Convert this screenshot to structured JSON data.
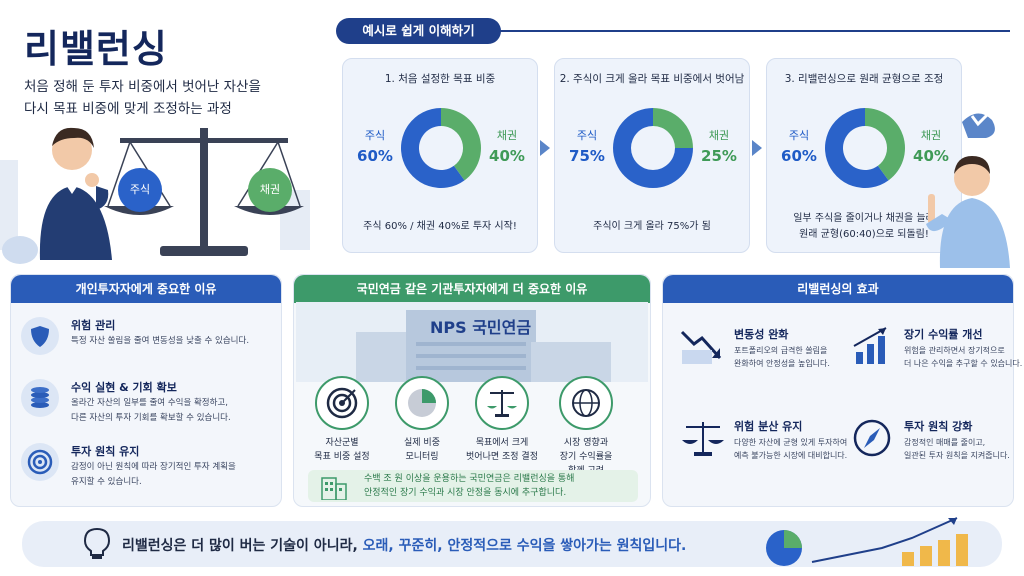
{
  "title": "리밸런싱",
  "subtitle_line1": "처음 정해 둔 투자 비중에서 벗어난 자산을",
  "subtitle_line2": "다시 목표 비중에 맞게 조정하는 과정",
  "scale": {
    "left_label": "주식",
    "right_label": "채권"
  },
  "example": {
    "header": "예시로 쉽게 이해하기",
    "steps": [
      {
        "title": "1. 처음 설정한 목표 비중",
        "left_name": "주식",
        "left_value": "60%",
        "right_name": "채권",
        "right_value": "40%",
        "stock_pct": 60,
        "caption": "주식 60% / 채권 40%로 투자 시작!",
        "caption2": ""
      },
      {
        "title": "2. 주식이 크게 올라 목표 비중에서 벗어남",
        "left_name": "주식",
        "left_value": "75%",
        "right_name": "채권",
        "right_value": "25%",
        "stock_pct": 75,
        "caption": "주식이 크게 올라 75%가 됨",
        "caption2": ""
      },
      {
        "title": "3. 리밸런싱으로 원래 균형으로 조정",
        "left_name": "주식",
        "left_value": "60%",
        "right_name": "채권",
        "right_value": "40%",
        "stock_pct": 60,
        "caption": "일부 주식을 줄이거나 채권을 늘려",
        "caption2": "원래 균형(60:40)으로 되돌림!"
      }
    ]
  },
  "individual": {
    "header": "개인투자자에게 중요한 이유",
    "items": [
      {
        "title": "위험 관리",
        "desc1": "특정 자산 쏠림을 줄여 변동성을 낮출 수 있습니다.",
        "desc2": "",
        "icon": "shield-icon"
      },
      {
        "title": "수익 실현 & 기회 확보",
        "desc1": "올라간 자산의 일부를 줄여 수익을 확정하고,",
        "desc2": "다른 자산의 투자 기회를 확보할 수 있습니다.",
        "icon": "coins-icon"
      },
      {
        "title": "투자 원칙 유지",
        "desc1": "감정이 아닌 원칙에 따라 장기적인 투자 계획을",
        "desc2": "유지할 수 있습니다.",
        "icon": "target-icon"
      }
    ]
  },
  "institutional": {
    "header": "국민연금 같은 기관투자자에게 더 중요한 이유",
    "building_sign": "NPS 국민연금",
    "steps": [
      {
        "line1": "자산군별",
        "line2": "목표 비중 설정",
        "icon": "target-icon"
      },
      {
        "line1": "실제 비중",
        "line2": "모니터링",
        "icon": "pie-chart-icon"
      },
      {
        "line1": "목표에서 크게",
        "line2": "벗어나면 조정 결정",
        "icon": "scale-icon"
      },
      {
        "line1": "시장 영향과",
        "line2": "장기 수익률을",
        "line3": "함께 고려",
        "icon": "globe-icon"
      }
    ],
    "note1": "수백 조 원 이상을 운용하는 국민연금은 리밸런싱을 통해",
    "note2": "안정적인 장기 수익과 시장 안정을 동시에 추구합니다."
  },
  "effects": {
    "header": "리밸런싱의 효과",
    "items": [
      {
        "title": "변동성 완화",
        "desc1": "포트폴리오의 급격한 쏠림을",
        "desc2": "완화하여 안정성을 높입니다.",
        "icon": "trend-down-icon"
      },
      {
        "title": "장기 수익률 개선",
        "desc1": "위험을 관리하면서 장기적으로",
        "desc2": "더 나은 수익을 추구할 수 있습니다.",
        "icon": "bar-chart-up-icon"
      },
      {
        "title": "위험 분산 유지",
        "desc1": "다양한 자산에 균형 있게 투자하여",
        "desc2": "예측 불가능한 시장에 대비합니다.",
        "icon": "scale-icon"
      },
      {
        "title": "투자 원칙 강화",
        "desc1": "감정적인 매매를 줄이고,",
        "desc2": "일관된 투자 원칙을 지켜줍니다.",
        "icon": "compass-icon"
      }
    ]
  },
  "bottom": {
    "text_a": "리밸런싱은 더 많이 버는 기술이 아니라, ",
    "text_b": "오래, 꾸준히, 안정적으로 수익을 쌓아가는 원칙입니다."
  },
  "colors": {
    "navy": "#14275c",
    "stock_blue": "#2a62c9",
    "bond_green": "#5aad6a",
    "nps_green": "#3d9a6a"
  }
}
